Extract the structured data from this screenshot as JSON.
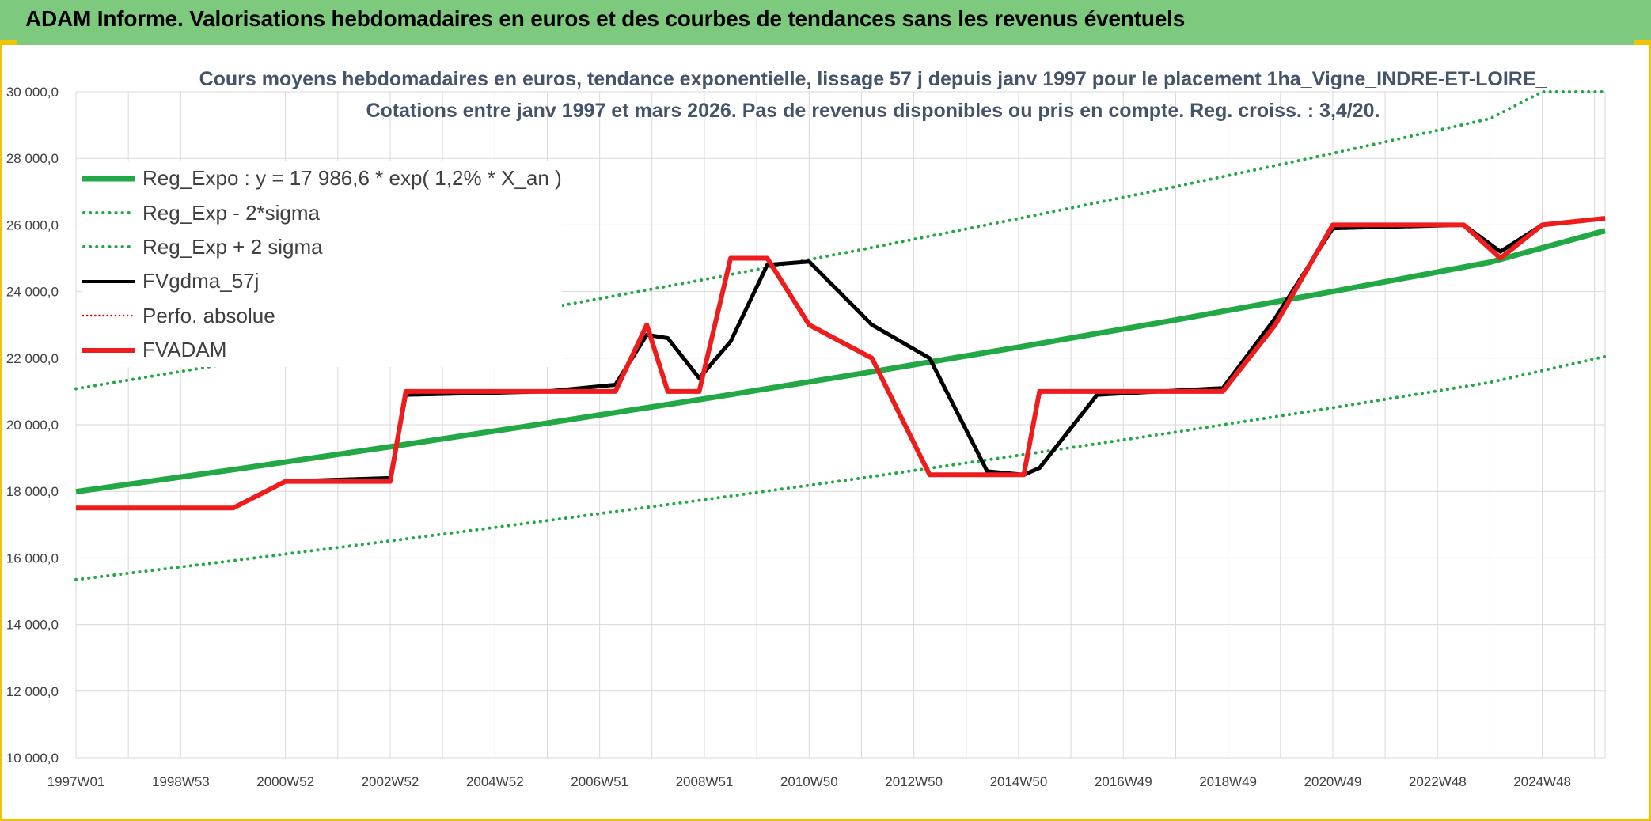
{
  "banner": {
    "title": "ADAM Informe. Valorisations hebdomadaires en euros et des courbes de tendances sans les revenus éventuels"
  },
  "colors": {
    "banner_bg": "#7dc97d",
    "accent": "#f0c400",
    "trend": "#22a845",
    "band": "#22a845",
    "smooth": "#000000",
    "perf": "#e00000",
    "fvadam": "#ee1c1c",
    "title_text": "#44546a"
  },
  "chart_data": {
    "type": "line",
    "title": "Cours moyens hebdomadaires en euros, tendance exponentielle, lissage 57 j depuis janv 1997 pour le placement 1ha_Vigne_INDRE-ET-LOIRE_",
    "subtitle": "Cotations entre janv 1997 et mars 2026. Pas de revenus disponibles ou pris en compte. Reg. croiss. : 3,4/20.",
    "xlabel": "",
    "ylabel": "",
    "ylim": [
      10000,
      30000
    ],
    "y_ticks": [
      "10 000,0",
      "12 000,0",
      "14 000,0",
      "16 000,0",
      "18 000,0",
      "20 000,0",
      "22 000,0",
      "24 000,0",
      "26 000,0",
      "28 000,0",
      "30 000,0"
    ],
    "y_tick_values": [
      10000,
      12000,
      14000,
      16000,
      18000,
      20000,
      22000,
      24000,
      26000,
      28000,
      30000
    ],
    "xlim": [
      1997.0,
      2026.2
    ],
    "x_ticks": [
      "1997W01",
      "1998W53",
      "2000W52",
      "2002W52",
      "2004W52",
      "2006W51",
      "2008W51",
      "2010W50",
      "2012W50",
      "2014W50",
      "2016W49",
      "2018W49",
      "2020W49",
      "2022W48",
      "2024W48"
    ],
    "x_tick_values": [
      1997.0,
      1999.0,
      2001.0,
      2003.0,
      2005.0,
      2007.0,
      2009.0,
      2011.0,
      2013.0,
      2015.0,
      2017.0,
      2019.0,
      2021.0,
      2023.0,
      2025.0
    ],
    "grid": true,
    "legend_position": "top-left",
    "series": [
      {
        "name": "Reg_Expo : y = 17 986,6 * exp( 1,2% *  X_an )",
        "style": "solid-thick",
        "x": [
          1997.0,
          2000.0,
          2003.0,
          2006.0,
          2009.0,
          2012.0,
          2015.0,
          2018.0,
          2021.0,
          2024.0,
          2026.2
        ],
        "y": [
          17990,
          18650,
          19340,
          20050,
          20780,
          21540,
          22330,
          23150,
          24000,
          24880,
          25830
        ]
      },
      {
        "name": "Reg_Exp - 2*sigma",
        "style": "dotted",
        "x": [
          1997.0,
          2000.0,
          2003.0,
          2006.0,
          2009.0,
          2012.0,
          2015.0,
          2018.0,
          2021.0,
          2024.0,
          2026.2
        ],
        "y": [
          15350,
          15920,
          16510,
          17120,
          17750,
          18400,
          19080,
          19780,
          20510,
          21270,
          22050
        ]
      },
      {
        "name": "Reg_Exp + 2 sigma",
        "style": "dotted",
        "x": [
          1997.0,
          2000.0,
          2003.0,
          2006.0,
          2009.0,
          2012.0,
          2015.0,
          2018.0,
          2021.0,
          2024.0,
          2025.0,
          2026.2
        ],
        "y": [
          21080,
          21860,
          22660,
          23500,
          24360,
          25260,
          26190,
          27150,
          28150,
          29190,
          30000,
          30000
        ]
      },
      {
        "name": "FVgdma_57j",
        "style": "solid-black",
        "x": [
          1997.0,
          2000.0,
          2001.0,
          2003.0,
          2003.3,
          2006.0,
          2007.3,
          2007.9,
          2008.3,
          2008.9,
          2009.5,
          2010.2,
          2011.0,
          2012.2,
          2013.3,
          2014.4,
          2015.1,
          2015.4,
          2016.5,
          2018.9,
          2019.9,
          2021.0,
          2023.5,
          2024.2,
          2025.0,
          2026.2
        ],
        "y": [
          17500,
          17500,
          18300,
          18400,
          20900,
          21000,
          21200,
          22700,
          22600,
          21400,
          22500,
          24800,
          24900,
          23000,
          22000,
          18600,
          18500,
          18700,
          20900,
          21100,
          23200,
          25900,
          26000,
          25200,
          26000,
          26200
        ]
      },
      {
        "name": "Perfo. absolue",
        "style": "dotted-red",
        "x": [],
        "y": []
      },
      {
        "name": "FVADAM",
        "style": "solid-red-thick",
        "x": [
          1997.0,
          2000.0,
          2001.0,
          2003.0,
          2003.3,
          2006.0,
          2007.3,
          2007.9,
          2008.3,
          2008.9,
          2009.5,
          2010.2,
          2011.0,
          2012.2,
          2013.3,
          2014.4,
          2015.1,
          2015.4,
          2016.5,
          2018.9,
          2019.9,
          2021.0,
          2023.5,
          2024.2,
          2025.0,
          2026.2
        ],
        "y": [
          17500,
          17500,
          18300,
          18300,
          21000,
          21000,
          21000,
          23000,
          21000,
          21000,
          25000,
          25000,
          23000,
          22000,
          18500,
          18500,
          18500,
          21000,
          21000,
          21000,
          23000,
          26000,
          26000,
          25000,
          26000,
          26200
        ]
      }
    ]
  }
}
